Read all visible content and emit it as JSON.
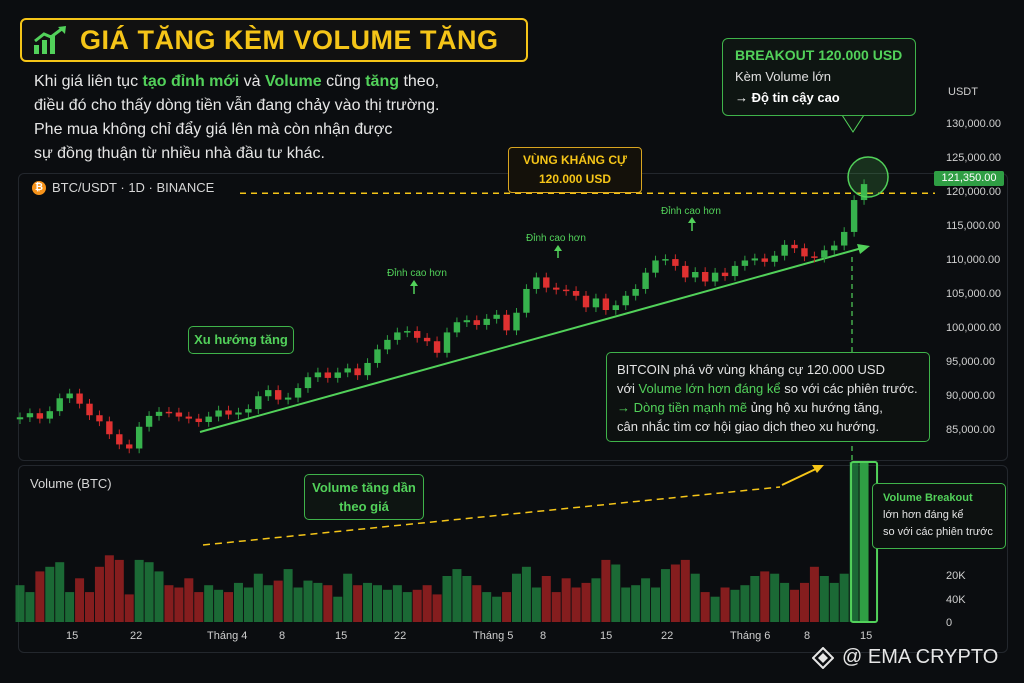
{
  "title": "GIÁ TĂNG KÈM VOLUME TĂNG",
  "intro": {
    "p1": "Khi giá liên tục ",
    "p2": "tạo đỉnh mới",
    "p3": " và ",
    "p4": "Volume",
    "p5": " cũng ",
    "p6": "tăng",
    "p7": " theo,",
    "line2": "điều đó cho thấy dòng tiền vẫn đang chảy vào thị trường.",
    "line3": "Phe mua không chỉ đẩy giá lên mà còn nhận được",
    "line4": "sự đồng thuận từ nhiều nhà đầu tư khác."
  },
  "symbol": "BTC/USDT · 1D · BINANCE",
  "volume_label": "Volume (BTC)",
  "breakout_box": {
    "title": "BREAKOUT 120.000 USD",
    "sub": "Kèm Volume lớn",
    "reliability": "→ Độ tin cậy cao"
  },
  "resistance_box": {
    "line1": "VÙNG KHÁNG CỰ",
    "line2": "120.000 USD"
  },
  "trend_label": "Xu hướng tăng",
  "volume_trend_label": {
    "line1": "Volume tăng dần",
    "line2": "theo giá"
  },
  "higher_high": "Đỉnh cao hơn",
  "info_box": {
    "l1": "BITCOIN phá vỡ vùng kháng cự 120.000 USD",
    "l2a": "với ",
    "l2b": "Volume lớn hơn đáng kể",
    "l2c": " so với các phiên trước.",
    "l3a": "→ ",
    "l3b": "Dòng tiền mạnh mẽ",
    "l3c": " ủng hộ xu hướng tăng,",
    "l4": "cân nhắc tìm cơ hội giao dịch theo xu hướng."
  },
  "volume_box": {
    "l1": "Volume Breakout",
    "l2": "lớn hơn đáng kể",
    "l3": "so với các phiên trước"
  },
  "current_price": "121,350.00",
  "brand": "@ EMA CRYPTO",
  "colors": {
    "up": "#2f9e44",
    "down": "#c92a2a",
    "accent": "#f5c518",
    "highlight": "#52d15a"
  },
  "chart_data": {
    "type": "candlestick",
    "price_axis": {
      "unit": "USDT",
      "ticks": [
        "130,000.00",
        "125,000.00",
        "120,000.00",
        "115,000.00",
        "110,000.00",
        "105,000.00",
        "100,000.00",
        "95,000.00",
        "90,000.00",
        "85,000.00"
      ],
      "range": [
        81000,
        133000
      ],
      "tick_values": [
        130000,
        125000,
        120000,
        115000,
        110000,
        105000,
        100000,
        95000,
        90000,
        85000
      ]
    },
    "volume_axis": {
      "ticks": [
        "20K",
        "40K",
        "0"
      ]
    },
    "x_ticks": [
      "15",
      "22",
      "Tháng 4",
      "8",
      "15",
      "22",
      "Tháng 5",
      "8",
      "15",
      "22",
      "Tháng 6",
      "8",
      "15"
    ],
    "resistance": 120000,
    "closes": [
      87000,
      87600,
      86800,
      87900,
      89800,
      90500,
      89000,
      87300,
      86400,
      84500,
      83000,
      82400,
      85600,
      87200,
      87800,
      87700,
      87100,
      86800,
      86300,
      87100,
      88000,
      87400,
      87700,
      88200,
      90100,
      91000,
      89600,
      89900,
      91300,
      92900,
      93600,
      92800,
      93600,
      94200,
      93200,
      95000,
      97000,
      98400,
      99500,
      99700,
      98700,
      98200,
      96500,
      99500,
      101000,
      101300,
      100600,
      101500,
      102100,
      99800,
      102400,
      105900,
      107600,
      106100,
      105800,
      105600,
      104900,
      103200,
      104500,
      102800,
      103500,
      104900,
      105900,
      108300,
      110100,
      110300,
      109300,
      107600,
      108400,
      107000,
      108300,
      107800,
      109300,
      110100,
      110400,
      109900,
      110800,
      112400,
      111900,
      110700,
      110500,
      111600,
      112300,
      114300,
      119000,
      121350
    ],
    "volumes": [
      16,
      13,
      22,
      24,
      26,
      13,
      19,
      13,
      24,
      29,
      27,
      12,
      27,
      26,
      22,
      16,
      15,
      19,
      13,
      16,
      14,
      13,
      17,
      15,
      21,
      16,
      18,
      23,
      15,
      18,
      17,
      16,
      11,
      21,
      16,
      17,
      16,
      14,
      16,
      13,
      14,
      16,
      12,
      20,
      23,
      20,
      16,
      13,
      11,
      13,
      21,
      24,
      15,
      20,
      13,
      19,
      15,
      17,
      19,
      27,
      25,
      15,
      16,
      19,
      15,
      23,
      25,
      27,
      21,
      13,
      11,
      15,
      14,
      16,
      20,
      22,
      21,
      17,
      14,
      17,
      24,
      20,
      17,
      21,
      35,
      45
    ]
  }
}
